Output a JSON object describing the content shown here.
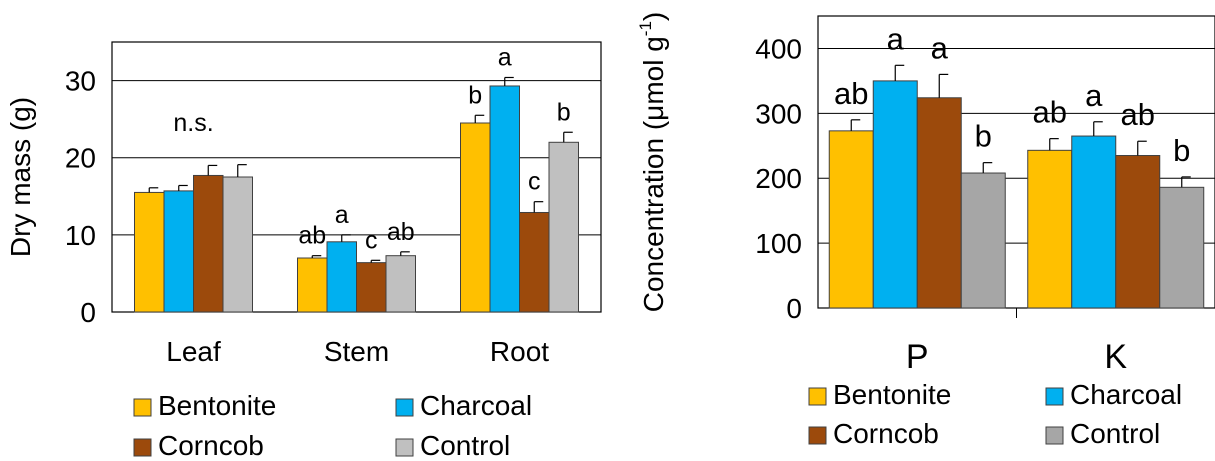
{
  "colors": {
    "Bentonite": "#FFC000",
    "Charcoal": "#00B0F0",
    "Corncob": "#9C4A0C",
    "Control_left": "#C0C0C0",
    "Control_right": "#A6A6A6"
  },
  "chart_data": [
    {
      "type": "bar",
      "title": "",
      "xlabel": "",
      "ylabel": "Dry mass (g)",
      "ylim": [
        0,
        35
      ],
      "yticks": [
        "0",
        "10",
        "20",
        "30"
      ],
      "grid": true,
      "legend": "bottom",
      "categories": [
        "Leaf",
        "Stem",
        "Root"
      ],
      "series": [
        {
          "name": "Bentonite",
          "values": [
            15.5,
            7.0,
            24.5
          ],
          "errors": [
            0.6,
            0.3,
            1.0
          ]
        },
        {
          "name": "Charcoal",
          "values": [
            15.7,
            9.1,
            29.3
          ],
          "errors": [
            0.7,
            0.9,
            1.1
          ]
        },
        {
          "name": "Corncob",
          "values": [
            17.7,
            6.4,
            12.9
          ],
          "errors": [
            1.3,
            0.3,
            1.4
          ]
        },
        {
          "name": "Control",
          "values": [
            17.5,
            7.3,
            22.0
          ],
          "errors": [
            1.6,
            0.5,
            1.3
          ]
        }
      ],
      "annotations": [
        {
          "category": "Leaf",
          "text": "n.s."
        },
        {
          "category": "Stem",
          "series": "Bentonite",
          "text": "ab"
        },
        {
          "category": "Stem",
          "series": "Charcoal",
          "text": "a"
        },
        {
          "category": "Stem",
          "series": "Corncob",
          "text": "c"
        },
        {
          "category": "Stem",
          "series": "Control",
          "text": "ab"
        },
        {
          "category": "Root",
          "series": "Bentonite",
          "text": "b"
        },
        {
          "category": "Root",
          "series": "Charcoal",
          "text": "a"
        },
        {
          "category": "Root",
          "series": "Corncob",
          "text": "c"
        },
        {
          "category": "Root",
          "series": "Control",
          "text": "b"
        }
      ]
    },
    {
      "type": "bar",
      "title": "",
      "xlabel": "",
      "ylabel": "Concentration (μmol g",
      "ylabel_sup": "-1",
      "ylabel_close": ")",
      "ylim": [
        0,
        450
      ],
      "yticks": [
        "0",
        "100",
        "200",
        "300",
        "400"
      ],
      "grid": true,
      "legend": "bottom",
      "categories": [
        "P",
        "K"
      ],
      "series": [
        {
          "name": "Bentonite",
          "values": [
            273,
            243
          ],
          "errors": [
            17,
            18
          ]
        },
        {
          "name": "Charcoal",
          "values": [
            350,
            265
          ],
          "errors": [
            24,
            22
          ]
        },
        {
          "name": "Corncob",
          "values": [
            324,
            235
          ],
          "errors": [
            36,
            22
          ]
        },
        {
          "name": "Control",
          "values": [
            208,
            186
          ],
          "errors": [
            16,
            16
          ]
        }
      ],
      "annotations": [
        {
          "category": "P",
          "series": "Bentonite",
          "text": "ab"
        },
        {
          "category": "P",
          "series": "Charcoal",
          "text": "a"
        },
        {
          "category": "P",
          "series": "Corncob",
          "text": "a"
        },
        {
          "category": "P",
          "series": "Control",
          "text": "b"
        },
        {
          "category": "K",
          "series": "Bentonite",
          "text": "ab"
        },
        {
          "category": "K",
          "series": "Charcoal",
          "text": "a"
        },
        {
          "category": "K",
          "series": "Corncob",
          "text": "ab"
        },
        {
          "category": "K",
          "series": "Control",
          "text": "b"
        }
      ]
    }
  ]
}
